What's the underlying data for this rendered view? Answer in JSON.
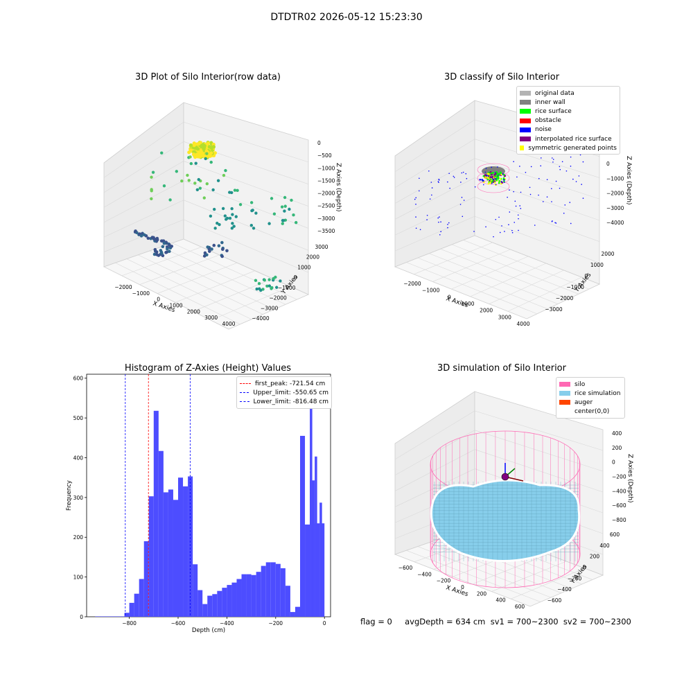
{
  "suptitle": "DTDTR02 2026-05-12 15:23:30",
  "footer": "flag = 0     avgDepth = 634 cm  sv1 = 700~2300  sv2 = 700~2300",
  "chart_data": [
    {
      "type": "scatter",
      "projection": "3d",
      "title": "3D Plot of Silo Interior(row data)",
      "xlabel": "X Axies",
      "ylabel": "Y Axies",
      "zlabel": "Z Axies (Depth)",
      "x_ticks": [
        "−2000",
        "−1000",
        "0",
        "1000",
        "2000",
        "3000",
        "4000"
      ],
      "y_ticks": [
        "−4000",
        "−3000",
        "−2000",
        "−1000",
        "0",
        "1000",
        "2000",
        "3000"
      ],
      "z_ticks": [
        "0",
        "−500",
        "−1000",
        "−1500",
        "−2000",
        "−2500",
        "−3000",
        "−3500"
      ],
      "xlim": [
        -2500,
        4200
      ],
      "ylim": [
        -4200,
        3300
      ],
      "zlim": [
        -3800,
        200
      ],
      "colormap": "viridis",
      "grid": true
    },
    {
      "type": "scatter",
      "projection": "3d",
      "title": "3D classify of Silo Interior",
      "xlabel": "X Axies",
      "ylabel": "Y Axies",
      "zlabel": "Z Axies (Depth)",
      "x_ticks": [
        "−2000",
        "−1000",
        "0",
        "1000",
        "2000",
        "3000",
        "4000"
      ],
      "y_ticks": [
        "−3000",
        "−2000",
        "−1000",
        "0",
        "1000",
        "2000"
      ],
      "z_ticks": [
        "1000",
        "0",
        "−1000",
        "−2000",
        "−3000",
        "−4000"
      ],
      "legend_position": "top-right",
      "legend": [
        {
          "label": "original data",
          "color": "#b3b3b3"
        },
        {
          "label": "inner wall",
          "color": "#808080"
        },
        {
          "label": "rice surface",
          "color": "#00ff00"
        },
        {
          "label": "obstacle",
          "color": "#ff0000"
        },
        {
          "label": "noise",
          "color": "#0000ff"
        },
        {
          "label": "interpolated rice surface",
          "color": "#800080"
        },
        {
          "label": "symmetric generated points",
          "color": "#ffff00"
        }
      ],
      "grid": true
    },
    {
      "type": "bar",
      "title": "Histogram of Z-Axies (Height) Values",
      "xlabel": "Depth (cm)",
      "ylabel": "Frequency",
      "xlim": [
        -975,
        25
      ],
      "ylim": [
        0,
        610
      ],
      "bar_color": "#4d4dff",
      "x_ticks": [
        "−800",
        "−600",
        "−400",
        "−200",
        "0"
      ],
      "x_tick_values": [
        -800,
        -600,
        -400,
        -200,
        0
      ],
      "y_ticks": [
        "0",
        "100",
        "200",
        "300",
        "400",
        "500",
        "600"
      ],
      "y_tick_values": [
        0,
        100,
        200,
        300,
        400,
        500,
        600
      ],
      "bin_width": 20,
      "bin_starts": [
        -940,
        -920,
        -900,
        -880,
        -860,
        -840,
        -820,
        -800,
        -780,
        -760,
        -740,
        -720,
        -700,
        -680,
        -660,
        -640,
        -620,
        -600,
        -580,
        -560,
        -540,
        -520,
        -500,
        -480,
        -460,
        -440,
        -420,
        -400,
        -380,
        -360,
        -340,
        -320,
        -300,
        -280,
        -260,
        -240,
        -220,
        -200,
        -180,
        -160,
        -140,
        -120,
        -100,
        -80,
        -60,
        -40,
        -20
      ],
      "counts": [
        1,
        1,
        1,
        1,
        1,
        1,
        10,
        35,
        58,
        95,
        190,
        303,
        518,
        417,
        313,
        320,
        294,
        350,
        328,
        353,
        132,
        67,
        32,
        53,
        57,
        65,
        73,
        80,
        86,
        95,
        107,
        107,
        105,
        113,
        128,
        137,
        137,
        133,
        122,
        78,
        12,
        25,
        455,
        232,
        343,
        235,
        235
      ],
      "extra_bars": [
        {
          "start": -60,
          "width": 10,
          "count": 560
        },
        {
          "start": -20,
          "width": 10,
          "count": 287
        },
        {
          "start": -40,
          "width": 10,
          "count": 403
        }
      ],
      "vlines": [
        {
          "label": "first_peak: -721.54 cm",
          "x": -721.54,
          "color": "#ff0000"
        },
        {
          "label": "Upper_limit: -550.65 cm",
          "x": -550.65,
          "color": "#0000ff"
        },
        {
          "label": "Lower_limit: -816.48 cm",
          "x": -816.48,
          "color": "#0000ff"
        }
      ],
      "legend_position": "top-right"
    },
    {
      "type": "surface",
      "projection": "3d",
      "title": "3D simulation of Silo Interior",
      "xlabel": "X Axies",
      "ylabel": "Y Axies",
      "zlabel": "Z Axies (Depth)",
      "x_ticks": [
        "−600",
        "−400",
        "−200",
        "0",
        "200",
        "400",
        "600"
      ],
      "y_ticks": [
        "−600",
        "−400",
        "−200",
        "0",
        "200",
        "400",
        "600"
      ],
      "z_ticks": [
        "400",
        "200",
        "0",
        "−200",
        "−400",
        "−600",
        "−800"
      ],
      "legend_position": "top-right",
      "legend": [
        {
          "label": "silo",
          "color": "#ff69b4"
        },
        {
          "label": "rice simulation",
          "color": "#87ceeb"
        },
        {
          "label": "auger",
          "color": "#ff4500"
        },
        {
          "label": "center(0,0)",
          "color": ""
        }
      ],
      "grid": true
    }
  ]
}
